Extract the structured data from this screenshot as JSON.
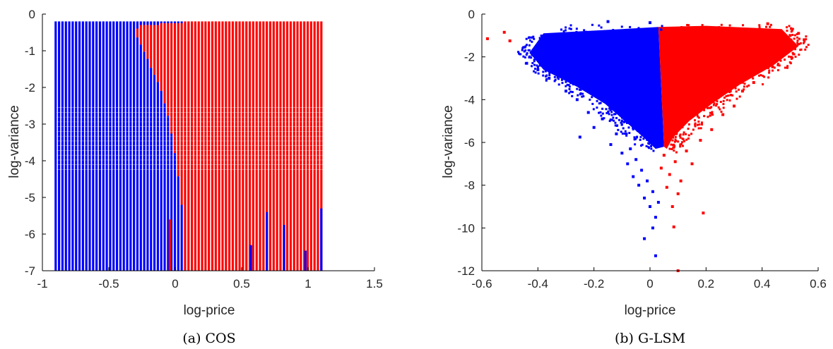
{
  "chart_data": [
    {
      "type": "scatter",
      "subtitle": "(a) COS",
      "xlabel": "log-price",
      "ylabel": "log-variance",
      "xlim": [
        -1,
        1.5
      ],
      "ylim": [
        -7,
        0
      ],
      "xticks": [
        "-1",
        "-0.5",
        "0",
        "0.5",
        "1",
        "1.5"
      ],
      "yticks": [
        "0",
        "-1",
        "-2",
        "-3",
        "-4",
        "-5",
        "-6",
        "-7"
      ],
      "grid": false,
      "legend": "none",
      "colors": {
        "blue": "#0000ff",
        "red": "#ff0000"
      },
      "grid_columns": {
        "x_start": -0.9,
        "x_end": 1.1,
        "y_top": -0.2,
        "y_bottom": -7,
        "count": 79
      },
      "boundary": [
        {
          "y": -0.2,
          "x": 0.06
        },
        {
          "y": -0.3,
          "x": -0.28
        },
        {
          "y": -0.5,
          "x": -0.3
        },
        {
          "y": -0.8,
          "x": -0.26
        },
        {
          "y": -1.2,
          "x": -0.21
        },
        {
          "y": -1.6,
          "x": -0.16
        },
        {
          "y": -2.0,
          "x": -0.11
        },
        {
          "y": -2.4,
          "x": -0.08
        },
        {
          "y": -2.8,
          "x": -0.05
        },
        {
          "y": -3.2,
          "x": -0.03
        },
        {
          "y": -3.6,
          "x": -0.01
        },
        {
          "y": -4.0,
          "x": 0.01
        },
        {
          "y": -4.6,
          "x": 0.03
        },
        {
          "y": -5.2,
          "x": 0.05
        },
        {
          "y": -5.8,
          "x": 0.06
        },
        {
          "y": -7.0,
          "x": 0.07
        }
      ],
      "blue_spikes": [
        {
          "x": 0.57,
          "y_top": -6.3
        },
        {
          "x": 0.69,
          "y_top": -5.4
        },
        {
          "x": 0.82,
          "y_top": -5.75
        },
        {
          "x": 0.98,
          "y_top": -6.45
        },
        {
          "x": 1.1,
          "y_top": -5.3
        }
      ],
      "red_spike": {
        "x": -0.04,
        "y_top": -5.6
      }
    },
    {
      "type": "scatter",
      "subtitle": "(b) G-LSM",
      "xlabel": "log-price",
      "ylabel": "log-variance",
      "xlim": [
        -0.6,
        0.6
      ],
      "ylim": [
        -12,
        0
      ],
      "xticks": [
        "-0.6",
        "-0.4",
        "-0.2",
        "0",
        "0.2",
        "0.4",
        "0.6"
      ],
      "yticks": [
        "0",
        "-2",
        "-4",
        "-6",
        "-8",
        "-10",
        "-12"
      ],
      "grid": false,
      "legend": "none",
      "colors": {
        "blue": "#0000ff",
        "red": "#ff0000"
      },
      "point_cloud": {
        "top_y": -0.6,
        "apex_y": -6.3,
        "split_x": 0.05,
        "left_edge": [
          {
            "y": -0.9,
            "x": -0.38
          },
          {
            "y": -1.8,
            "x": -0.43
          },
          {
            "y": -2.6,
            "x": -0.38
          },
          {
            "y": -3.4,
            "x": -0.26
          },
          {
            "y": -4.2,
            "x": -0.16
          },
          {
            "y": -5.0,
            "x": -0.09
          },
          {
            "y": -5.8,
            "x": -0.02
          },
          {
            "y": -6.3,
            "x": 0.02
          }
        ],
        "right_edge": [
          {
            "y": -0.7,
            "x": 0.47
          },
          {
            "y": -1.5,
            "x": 0.53
          },
          {
            "y": -2.4,
            "x": 0.44
          },
          {
            "y": -3.3,
            "x": 0.32
          },
          {
            "y": -4.2,
            "x": 0.22
          },
          {
            "y": -5.0,
            "x": 0.14
          },
          {
            "y": -5.8,
            "x": 0.08
          },
          {
            "y": -6.3,
            "x": 0.06
          }
        ]
      },
      "outliers": [
        {
          "x": -0.58,
          "y": -1.15,
          "c": "red"
        },
        {
          "x": -0.52,
          "y": -0.85,
          "c": "red"
        },
        {
          "x": -0.5,
          "y": -1.25,
          "c": "red"
        },
        {
          "x": -0.44,
          "y": -2.3,
          "c": "blue"
        },
        {
          "x": -0.42,
          "y": -1.9,
          "c": "blue"
        },
        {
          "x": -0.4,
          "y": -2.6,
          "c": "blue"
        },
        {
          "x": -0.36,
          "y": -3.0,
          "c": "blue"
        },
        {
          "x": -0.33,
          "y": -2.8,
          "c": "blue"
        },
        {
          "x": -0.3,
          "y": -3.6,
          "c": "blue"
        },
        {
          "x": -0.26,
          "y": -4.0,
          "c": "blue"
        },
        {
          "x": -0.25,
          "y": -5.75,
          "c": "blue"
        },
        {
          "x": -0.22,
          "y": -4.6,
          "c": "blue"
        },
        {
          "x": -0.2,
          "y": -5.3,
          "c": "blue"
        },
        {
          "x": -0.17,
          "y": -4.9,
          "c": "blue"
        },
        {
          "x": -0.14,
          "y": -6.1,
          "c": "blue"
        },
        {
          "x": -0.12,
          "y": -5.6,
          "c": "blue"
        },
        {
          "x": -0.1,
          "y": -6.5,
          "c": "blue"
        },
        {
          "x": -0.08,
          "y": -7.0,
          "c": "blue"
        },
        {
          "x": -0.07,
          "y": -6.3,
          "c": "blue"
        },
        {
          "x": -0.06,
          "y": -7.6,
          "c": "blue"
        },
        {
          "x": -0.05,
          "y": -6.8,
          "c": "blue"
        },
        {
          "x": -0.04,
          "y": -8.0,
          "c": "blue"
        },
        {
          "x": -0.03,
          "y": -7.3,
          "c": "blue"
        },
        {
          "x": -0.02,
          "y": -8.6,
          "c": "blue"
        },
        {
          "x": -0.01,
          "y": -7.8,
          "c": "blue"
        },
        {
          "x": 0.0,
          "y": -9.0,
          "c": "blue"
        },
        {
          "x": 0.01,
          "y": -8.3,
          "c": "blue"
        },
        {
          "x": 0.01,
          "y": -10.0,
          "c": "blue"
        },
        {
          "x": 0.02,
          "y": -9.5,
          "c": "blue"
        },
        {
          "x": 0.02,
          "y": -11.3,
          "c": "blue"
        },
        {
          "x": 0.03,
          "y": -8.8,
          "c": "blue"
        },
        {
          "x": -0.02,
          "y": -10.5,
          "c": "blue"
        },
        {
          "x": 0.04,
          "y": -7.2,
          "c": "red"
        },
        {
          "x": 0.05,
          "y": -6.6,
          "c": "red"
        },
        {
          "x": 0.06,
          "y": -8.1,
          "c": "red"
        },
        {
          "x": 0.07,
          "y": -7.5,
          "c": "red"
        },
        {
          "x": 0.08,
          "y": -9.0,
          "c": "red"
        },
        {
          "x": 0.09,
          "y": -6.9,
          "c": "red"
        },
        {
          "x": 0.1,
          "y": -8.4,
          "c": "red"
        },
        {
          "x": 0.11,
          "y": -7.8,
          "c": "red"
        },
        {
          "x": 0.1,
          "y": -12.0,
          "c": "red"
        },
        {
          "x": 0.085,
          "y": -9.95,
          "c": "red"
        },
        {
          "x": 0.13,
          "y": -6.4,
          "c": "red"
        },
        {
          "x": 0.15,
          "y": -7.0,
          "c": "red"
        },
        {
          "x": 0.18,
          "y": -5.9,
          "c": "red"
        },
        {
          "x": 0.19,
          "y": -9.3,
          "c": "red"
        },
        {
          "x": 0.22,
          "y": -5.4,
          "c": "red"
        },
        {
          "x": 0.26,
          "y": -4.7,
          "c": "red"
        },
        {
          "x": 0.3,
          "y": -4.3,
          "c": "red"
        },
        {
          "x": 0.33,
          "y": -3.6,
          "c": "red"
        },
        {
          "x": 0.37,
          "y": -3.2,
          "c": "red"
        },
        {
          "x": 0.41,
          "y": -2.5,
          "c": "red"
        },
        {
          "x": 0.44,
          "y": -1.9,
          "c": "red"
        },
        {
          "x": 0.47,
          "y": -1.3,
          "c": "red"
        },
        {
          "x": 0.5,
          "y": -1.0,
          "c": "red"
        },
        {
          "x": 0.53,
          "y": -0.9,
          "c": "red"
        },
        {
          "x": 0.55,
          "y": -1.2,
          "c": "red"
        },
        {
          "x": 0.42,
          "y": -0.45,
          "c": "red"
        },
        {
          "x": -0.15,
          "y": -0.35,
          "c": "blue"
        },
        {
          "x": 0.0,
          "y": -0.4,
          "c": "blue"
        }
      ]
    }
  ]
}
